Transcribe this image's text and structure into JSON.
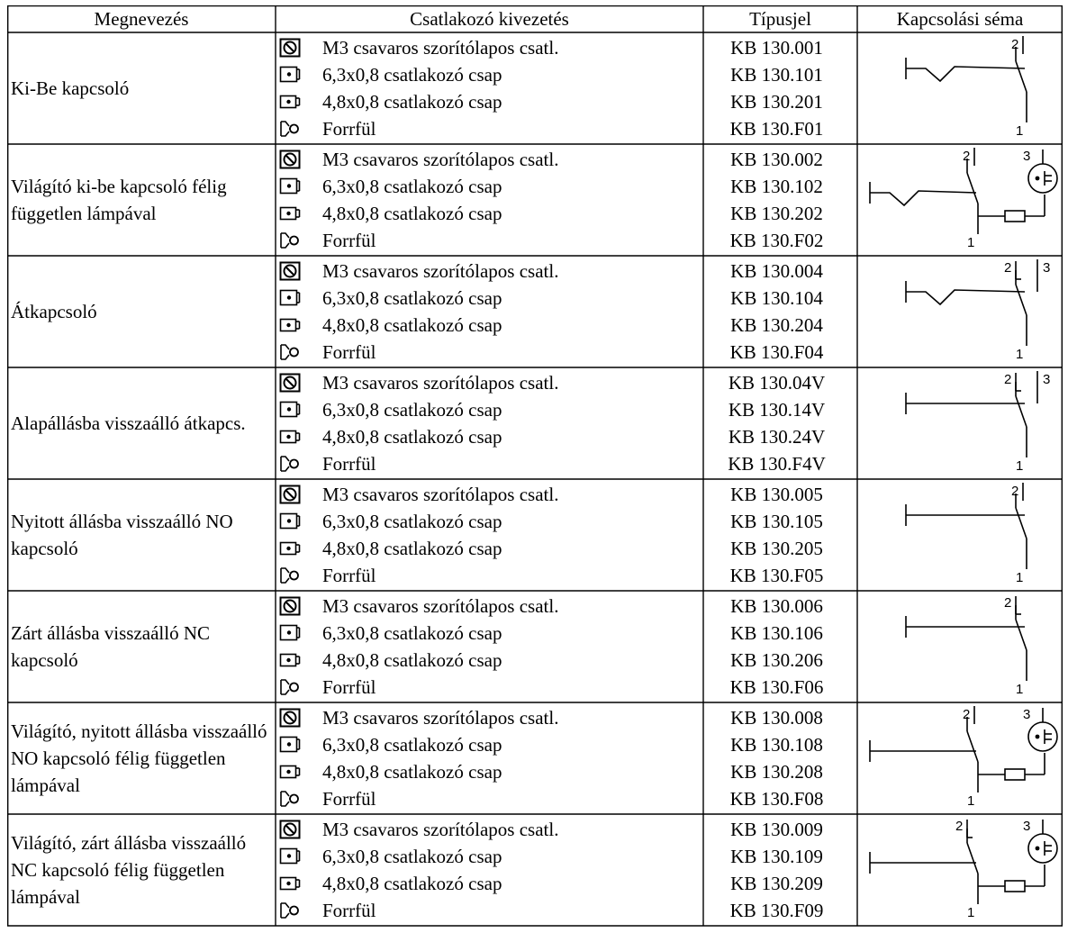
{
  "header": {
    "col_name": "Megnevezés",
    "col_connection": "Csatlakozó kivezetés",
    "col_type": "Típusjel",
    "col_schema": "Kapcsolási séma"
  },
  "connections": [
    {
      "icon": "screw-terminal-icon",
      "label": "M3 csavaros szorítólapos csatl."
    },
    {
      "icon": "pin-6-3-icon",
      "label": "6,3x0,8 csatlakozó csap"
    },
    {
      "icon": "pin-4-8-icon",
      "label": "4,8x0,8 csatlakozó csap"
    },
    {
      "icon": "solder-lug-icon",
      "label": "Forrfül"
    }
  ],
  "rows": [
    {
      "name": "Ki-Be kapcsoló",
      "schema": "on-off",
      "types": [
        "KB 130.001",
        "KB 130.101",
        "KB 130.201",
        "KB 130.F01"
      ],
      "terminals": [
        "1",
        "2"
      ]
    },
    {
      "name": "Világító ki-be kapcsoló félig független lámpával",
      "schema": "on-off-lamp",
      "types": [
        "KB 130.002",
        "KB 130.102",
        "KB 130.202",
        "KB 130.F02"
      ],
      "terminals": [
        "1",
        "2",
        "3"
      ]
    },
    {
      "name": "Átkapcsoló",
      "schema": "changeover",
      "types": [
        "KB 130.004",
        "KB 130.104",
        "KB 130.204",
        "KB 130.F04"
      ],
      "terminals": [
        "1",
        "2",
        "3"
      ]
    },
    {
      "name": "Alapállásba  visszaálló átkapcs.",
      "schema": "changeover-return",
      "types": [
        "KB 130.04V",
        "KB 130.14V",
        "KB 130.24V",
        "KB 130.F4V"
      ],
      "terminals": [
        "1",
        "2",
        "3"
      ]
    },
    {
      "name": "Nyitott állásba visszaálló NO kapcsoló",
      "schema": "no-return",
      "types": [
        "KB 130.005",
        "KB 130.105",
        "KB 130.205",
        "KB 130.F05"
      ],
      "terminals": [
        "1",
        "2"
      ]
    },
    {
      "name": "Zárt állásba visszaálló NC kapcsoló",
      "schema": "nc-return",
      "types": [
        "KB 130.006",
        "KB 130.106",
        "KB 130.206",
        "KB 130.F06"
      ],
      "terminals": [
        "1",
        "2"
      ]
    },
    {
      "name": "Világító, nyitott állásba visszaálló NO kapcsoló félig független lámpával",
      "schema": "no-return-lamp",
      "types": [
        "KB 130.008",
        "KB 130.108",
        "KB 130.208",
        "KB 130.F08"
      ],
      "terminals": [
        "1",
        "2",
        "3"
      ]
    },
    {
      "name": "Világító, zárt állásba visszaálló NC kapcsoló félig független lámpával",
      "schema": "nc-return-lamp",
      "types": [
        "KB 130.009",
        "KB 130.109",
        "KB 130.209",
        "KB 130.F09"
      ],
      "terminals": [
        "1",
        "2",
        "3"
      ]
    }
  ]
}
